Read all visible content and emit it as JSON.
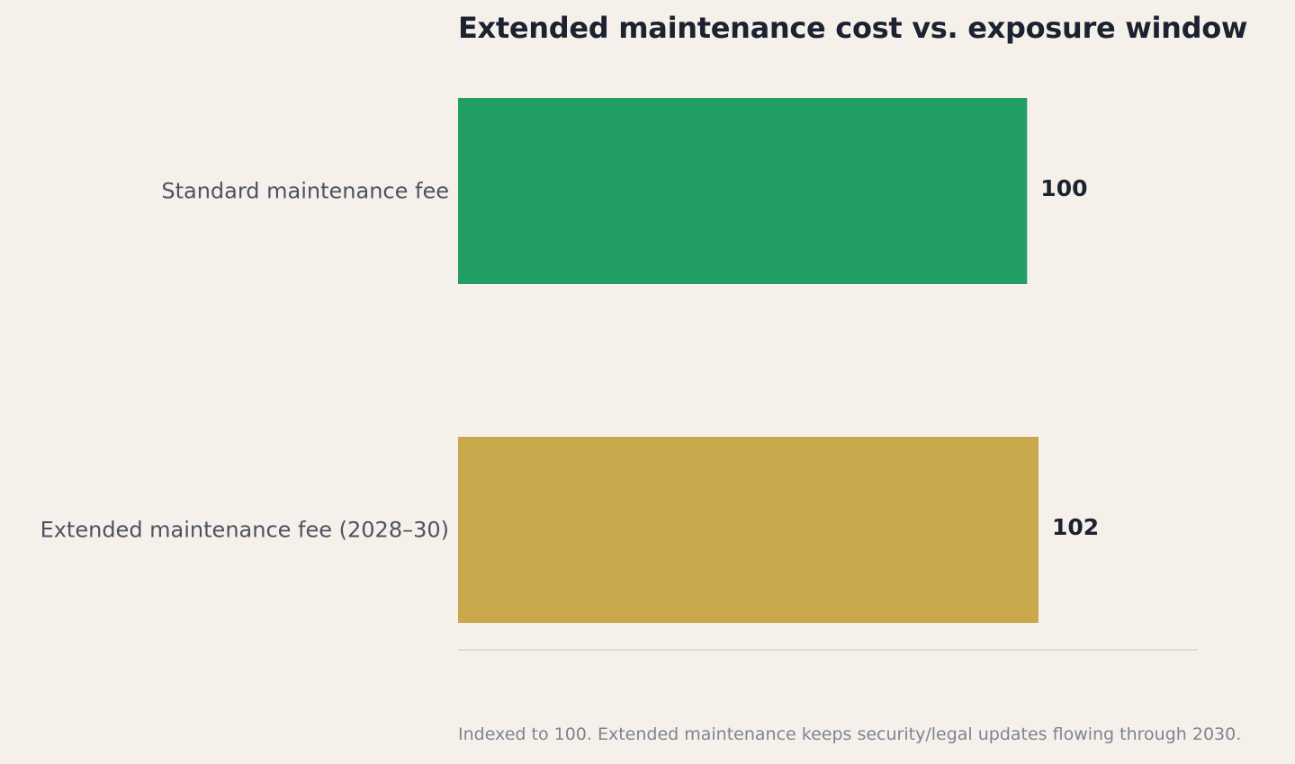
{
  "chart_data": {
    "type": "bar",
    "orientation": "horizontal",
    "title": "Extended maintenance cost vs. exposure window",
    "categories": [
      "Standard maintenance fee",
      "Extended maintenance fee (2028–30)"
    ],
    "values": [
      100,
      102
    ],
    "value_labels": [
      "100",
      "102"
    ],
    "colors": [
      "#219e64",
      "#c9a84b"
    ],
    "xlim": [
      0,
      130
    ],
    "grid": false,
    "legend": "none",
    "footnote": "Indexed to 100. Extended maintenance keeps security/legal updates flowing through 2030."
  }
}
